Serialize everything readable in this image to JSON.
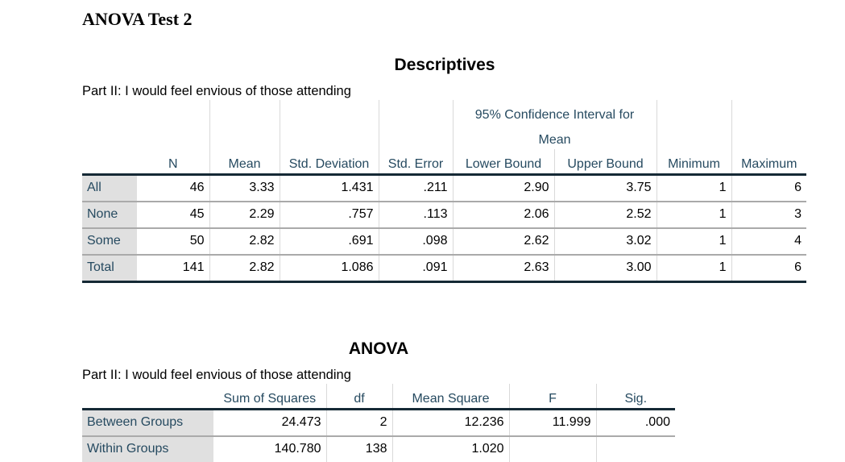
{
  "document_title": "ANOVA Test 2",
  "descriptives": {
    "title": "Descriptives",
    "caption": "Part II: I would feel envious of those attending",
    "ci_header_line1": "95% Confidence Interval for",
    "ci_header_line2": "Mean",
    "columns": [
      "N",
      "Mean",
      "Std. Deviation",
      "Std. Error",
      "Lower Bound",
      "Upper Bound",
      "Minimum",
      "Maximum"
    ],
    "rows": [
      {
        "label": "All",
        "values": [
          "46",
          "3.33",
          "1.431",
          ".211",
          "2.90",
          "3.75",
          "1",
          "6"
        ]
      },
      {
        "label": "None",
        "values": [
          "45",
          "2.29",
          ".757",
          ".113",
          "2.06",
          "2.52",
          "1",
          "3"
        ]
      },
      {
        "label": "Some",
        "values": [
          "50",
          "2.82",
          ".691",
          ".098",
          "2.62",
          "3.02",
          "1",
          "4"
        ]
      },
      {
        "label": "Total",
        "values": [
          "141",
          "2.82",
          "1.086",
          ".091",
          "2.63",
          "3.00",
          "1",
          "6"
        ]
      }
    ]
  },
  "anova": {
    "title": "ANOVA",
    "caption": "Part II: I would feel envious of those attending",
    "columns": [
      "Sum of Squares",
      "df",
      "Mean Square",
      "F",
      "Sig."
    ],
    "rows": [
      {
        "label": "Between Groups",
        "values": [
          "24.473",
          "2",
          "12.236",
          "11.999",
          ".000"
        ]
      },
      {
        "label": "Within Groups",
        "values": [
          "140.780",
          "138",
          "1.020",
          "",
          ""
        ]
      }
    ]
  }
}
